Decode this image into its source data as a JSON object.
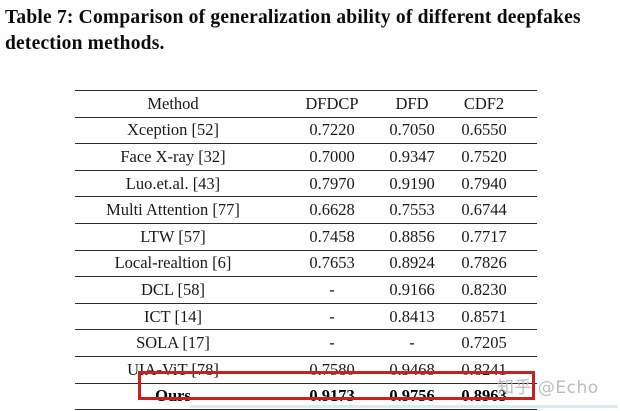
{
  "caption": "Table 7: Comparison of generalization ability of different deepfakes detection methods.",
  "table": {
    "headers": [
      "Method",
      "DFDCP",
      "DFD",
      "CDF2"
    ],
    "rows": [
      {
        "cells": [
          "Xception [52]",
          "0.7220",
          "0.7050",
          "0.6550"
        ],
        "highlight": false
      },
      {
        "cells": [
          "Face X-ray [32]",
          "0.7000",
          "0.9347",
          "0.7520"
        ],
        "highlight": false
      },
      {
        "cells": [
          "Luo.et.al. [43]",
          "0.7970",
          "0.9190",
          "0.7940"
        ],
        "highlight": false
      },
      {
        "cells": [
          "Multi Attention [77]",
          "0.6628",
          "0.7553",
          "0.6744"
        ],
        "highlight": false
      },
      {
        "cells": [
          "LTW [57]",
          "0.7458",
          "0.8856",
          "0.7717"
        ],
        "highlight": false
      },
      {
        "cells": [
          "Local-realtion [6]",
          "0.7653",
          "0.8924",
          "0.7826"
        ],
        "highlight": false
      },
      {
        "cells": [
          "DCL [58]",
          "-",
          "0.9166",
          "0.8230"
        ],
        "highlight": false
      },
      {
        "cells": [
          "ICT [14]",
          "-",
          "0.8413",
          "0.8571"
        ],
        "highlight": false
      },
      {
        "cells": [
          "SOLA [17]",
          "-",
          "-",
          "0.7205"
        ],
        "highlight": false
      },
      {
        "cells": [
          "UIA-ViT [78]",
          "0.7580",
          "0.9468",
          "0.8241"
        ],
        "highlight": false
      },
      {
        "cells": [
          "Ours",
          "0.9173",
          "0.9756",
          "0.8963"
        ],
        "highlight": true
      }
    ]
  },
  "watermark": {
    "text": "知乎 @Echo"
  },
  "colors": {
    "highlight_box": "#cb1f1f",
    "rule": "#2c2c2c",
    "watermark": "#b2b7bc"
  }
}
